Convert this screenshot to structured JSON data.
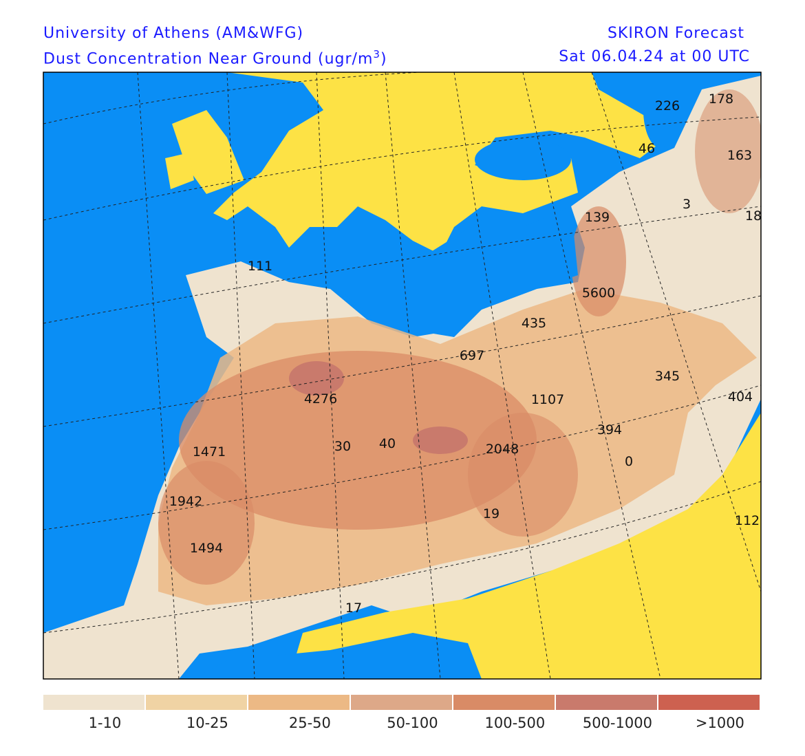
{
  "header": {
    "left_line1": "University of Athens (AM&WFG)",
    "left_line2": "Dust Concentration Near Ground (ugr/m",
    "left_line2_sup": "3",
    "left_line2_end": ")",
    "right_line1": "SKIRON Forecast",
    "right_line2": "Sat 06.04.24 at 00 UTC"
  },
  "map_labels": [
    226,
    178,
    46,
    163,
    3,
    139,
    18,
    111,
    5600,
    435,
    697,
    345,
    4276,
    1107,
    404,
    394,
    1471,
    30,
    40,
    2048,
    0,
    1942,
    19,
    112,
    1494,
    17
  ],
  "legend": [
    {
      "label": "1-10",
      "color": "#efe3cf"
    },
    {
      "label": "10-25",
      "color": "#f0d3a4"
    },
    {
      "label": "25-50",
      "color": "#ecb985"
    },
    {
      "label": "50-100",
      "color": "#dda888"
    },
    {
      "label": "100-500",
      "color": "#d98b66"
    },
    {
      "label": "500-1000",
      "color": "#c97a6c"
    },
    {
      "label": ">1000",
      "color": "#cd6150"
    }
  ]
}
